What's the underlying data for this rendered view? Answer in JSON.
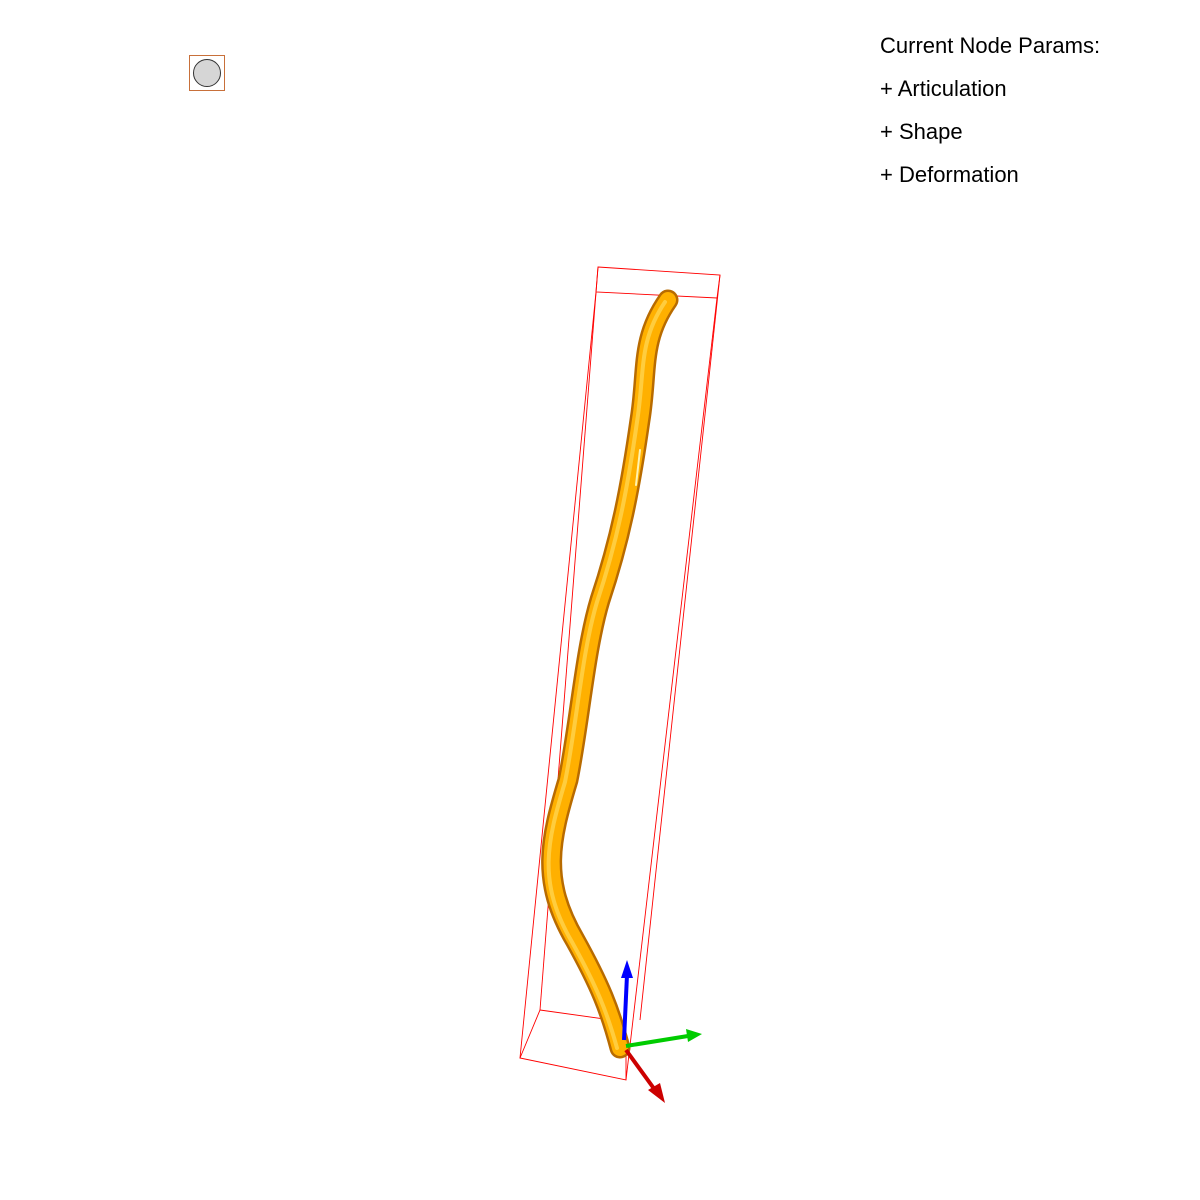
{
  "panel": {
    "title": "Current Node Params:",
    "items": [
      {
        "label": "+ Articulation"
      },
      {
        "label": "+ Shape"
      },
      {
        "label": "+ Deformation"
      }
    ]
  },
  "toggle": {
    "icon": "circle-icon",
    "fill_color": "#d6d6d6",
    "border_color": "#c8703a"
  },
  "scene": {
    "object_color": "#ffb000",
    "bbox_color": "#ff0000",
    "axes": {
      "x_color": "#cc0000",
      "y_color": "#00cc00",
      "z_color": "#0000ff"
    }
  }
}
